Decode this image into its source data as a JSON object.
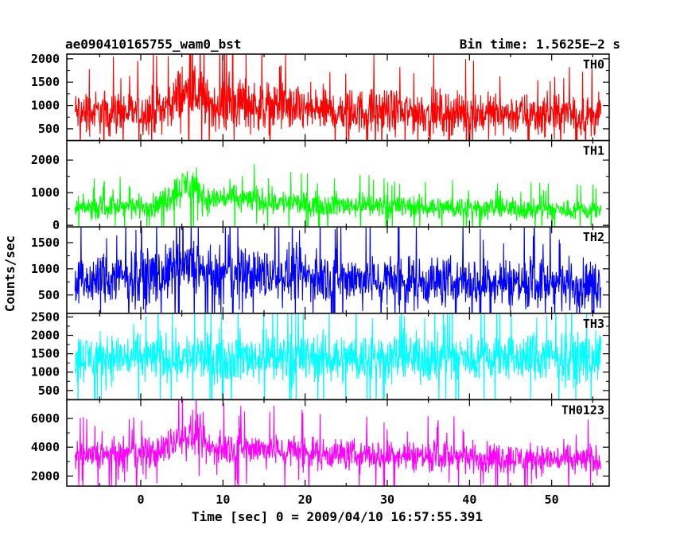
{
  "chart_data": {
    "type": "line",
    "title_left": "ae090410165755_wam0_bst",
    "title_right": "Bin time: 1.5625E−2 s",
    "xlabel": "Time [sec] 0 = 2009/04/10 16:57:55.391",
    "ylabel": "Counts/sec",
    "xlim": [
      -9,
      57
    ],
    "data_range": [
      -8,
      56
    ],
    "x_ticks": [
      0,
      10,
      20,
      30,
      40,
      50
    ],
    "bin_time": 0.015625,
    "panels": [
      {
        "name": "TH0",
        "color": "#ff0000",
        "ylim": [
          250,
          2100
        ],
        "y_ticks": [
          500,
          1000,
          1500,
          2000
        ],
        "profile": [
          {
            "x": -8,
            "mean": 850,
            "spread": 900
          },
          {
            "x": 0,
            "mean": 850,
            "spread": 900
          },
          {
            "x": 3,
            "mean": 950,
            "spread": 1000
          },
          {
            "x": 5,
            "mean": 1250,
            "spread": 1300
          },
          {
            "x": 7,
            "mean": 1250,
            "spread": 1300
          },
          {
            "x": 8,
            "mean": 1000,
            "spread": 1100
          },
          {
            "x": 12,
            "mean": 1050,
            "spread": 1100
          },
          {
            "x": 20,
            "mean": 900,
            "spread": 950
          },
          {
            "x": 56,
            "mean": 780,
            "spread": 850
          }
        ]
      },
      {
        "name": "TH1",
        "color": "#00ff00",
        "ylim": [
          -50,
          2600
        ],
        "y_ticks": [
          0,
          1000,
          2000
        ],
        "profile": [
          {
            "x": -8,
            "mean": 520,
            "spread": 650
          },
          {
            "x": 2,
            "mean": 600,
            "spread": 700
          },
          {
            "x": 4,
            "mean": 1000,
            "spread": 1000
          },
          {
            "x": 6,
            "mean": 1300,
            "spread": 1300
          },
          {
            "x": 7,
            "mean": 1100,
            "spread": 1100
          },
          {
            "x": 8,
            "mean": 750,
            "spread": 800
          },
          {
            "x": 10,
            "mean": 850,
            "spread": 850
          },
          {
            "x": 20,
            "mean": 650,
            "spread": 700
          },
          {
            "x": 56,
            "mean": 450,
            "spread": 600
          }
        ]
      },
      {
        "name": "TH2",
        "color": "#0000ff",
        "ylim": [
          150,
          1800
        ],
        "y_ticks": [
          500,
          1000,
          1500
        ],
        "profile": [
          {
            "x": -8,
            "mean": 750,
            "spread": 900
          },
          {
            "x": 3,
            "mean": 900,
            "spread": 1000
          },
          {
            "x": 5,
            "mean": 1000,
            "spread": 1100
          },
          {
            "x": 7,
            "mean": 1000,
            "spread": 1100
          },
          {
            "x": 8,
            "mean": 850,
            "spread": 950
          },
          {
            "x": 15,
            "mean": 900,
            "spread": 1000
          },
          {
            "x": 30,
            "mean": 780,
            "spread": 950
          },
          {
            "x": 56,
            "mean": 700,
            "spread": 900
          }
        ]
      },
      {
        "name": "TH3",
        "color": "#00ffff",
        "ylim": [
          250,
          2600
        ],
        "y_ticks": [
          500,
          1000,
          1500,
          2000,
          2500
        ],
        "profile": [
          {
            "x": -8,
            "mean": 1400,
            "spread": 1300
          },
          {
            "x": 56,
            "mean": 1400,
            "spread": 1300
          }
        ]
      },
      {
        "name": "TH0123",
        "color": "#ff00ff",
        "ylim": [
          1300,
          7300
        ],
        "y_ticks": [
          2000,
          4000,
          6000
        ],
        "profile": [
          {
            "x": -8,
            "mean": 3300,
            "spread": 2000
          },
          {
            "x": 2,
            "mean": 3600,
            "spread": 2200
          },
          {
            "x": 5,
            "mean": 4800,
            "spread": 2800
          },
          {
            "x": 7,
            "mean": 4800,
            "spread": 2800
          },
          {
            "x": 8,
            "mean": 3900,
            "spread": 2300
          },
          {
            "x": 12,
            "mean": 4000,
            "spread": 2300
          },
          {
            "x": 25,
            "mean": 3500,
            "spread": 2100
          },
          {
            "x": 56,
            "mean": 3100,
            "spread": 2000
          }
        ]
      }
    ]
  }
}
